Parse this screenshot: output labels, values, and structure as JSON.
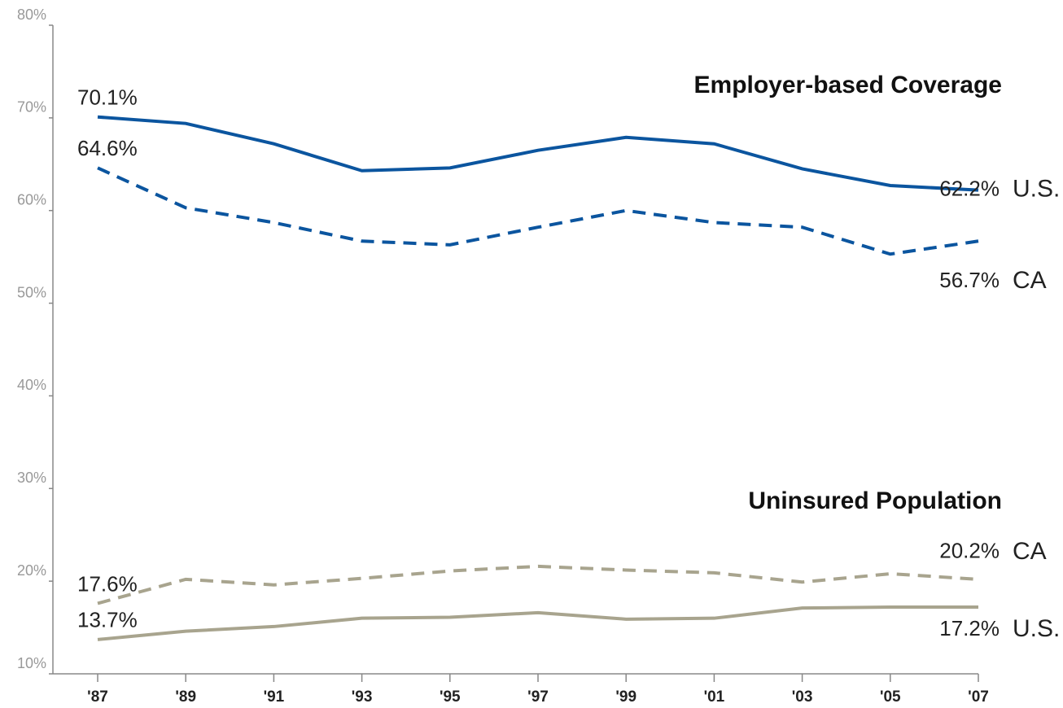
{
  "chart_data": {
    "type": "line",
    "annotations": [
      "Employer-based Coverage",
      "Uninsured Population"
    ],
    "categories": [
      "'87",
      "'89",
      "'91",
      "'93",
      "'95",
      "'97",
      "'99",
      "'01",
      "'03",
      "'05",
      "'07"
    ],
    "series": [
      {
        "name": "U.S.",
        "color": "#0b559f",
        "dashed": false,
        "values": [
          70.1,
          69.4,
          67.2,
          64.3,
          64.6,
          66.5,
          67.9,
          67.2,
          64.5,
          62.7,
          62.2
        ],
        "value_labels": [
          "70.1%",
          null,
          null,
          null,
          null,
          null,
          null,
          null,
          null,
          null,
          "62.2%"
        ]
      },
      {
        "name": "CA",
        "color": "#0b559f",
        "dashed": true,
        "values": [
          64.6,
          60.3,
          58.7,
          56.7,
          56.3,
          58.2,
          60.0,
          58.7,
          58.2,
          55.3,
          56.7
        ],
        "value_labels": [
          "64.6%",
          null,
          null,
          null,
          null,
          null,
          null,
          null,
          null,
          null,
          "56.7%"
        ]
      },
      {
        "name": "CA",
        "color": "#a8a48e",
        "dashed": true,
        "values": [
          17.6,
          20.2,
          19.6,
          20.3,
          21.1,
          21.6,
          21.2,
          20.9,
          19.9,
          20.8,
          20.2
        ],
        "value_labels": [
          "17.6%",
          null,
          null,
          null,
          null,
          null,
          null,
          null,
          null,
          null,
          "20.2%"
        ]
      },
      {
        "name": "U.S.",
        "color": "#a8a48e",
        "dashed": false,
        "values": [
          13.7,
          14.6,
          15.1,
          16.0,
          16.1,
          16.6,
          15.9,
          16.0,
          17.1,
          17.2,
          17.2
        ],
        "value_labels": [
          "13.7%",
          null,
          null,
          null,
          null,
          null,
          null,
          null,
          null,
          null,
          "17.2%"
        ]
      }
    ],
    "ylim": [
      10,
      80
    ],
    "yticks": [
      {
        "value": 10,
        "label": "10%"
      },
      {
        "value": 20,
        "label": "20%"
      },
      {
        "value": 30,
        "label": "30%"
      },
      {
        "value": 40,
        "label": "40%"
      },
      {
        "value": 50,
        "label": "50%"
      },
      {
        "value": 60,
        "label": "60%"
      },
      {
        "value": 70,
        "label": "70%"
      },
      {
        "value": 80,
        "label": "80%"
      }
    ],
    "grid": false
  }
}
